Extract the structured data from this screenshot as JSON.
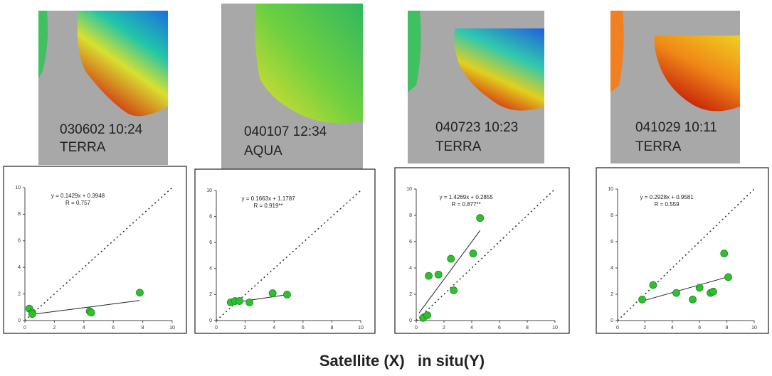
{
  "images": [
    {
      "date": "030602 10:24",
      "satellite": "TERRA"
    },
    {
      "date": "040107 12:34",
      "satellite": "AQUA"
    },
    {
      "date": "040723 10:23",
      "satellite": "TERRA"
    },
    {
      "date": "041029 10:11",
      "satellite": "TERRA"
    }
  ],
  "caption": "Satellite (X)   in situ(Y)",
  "chart_data": [
    {
      "type": "scatter",
      "annotations": [
        "y = 0.1429x + 0.3948",
        "R = 0.757"
      ],
      "x": [
        0.3,
        0.5,
        0.5,
        4.4,
        4.5,
        7.8
      ],
      "values": [
        0.9,
        0.6,
        0.5,
        0.7,
        0.6,
        2.1
      ],
      "color": "#2fbf2f",
      "fit_line": {
        "x": [
          0.3,
          7.8
        ],
        "y": [
          0.44,
          1.51
        ]
      },
      "identity_line": true,
      "xlim": [
        0,
        10
      ],
      "ylim": [
        0,
        10
      ],
      "xticks": [
        0,
        2,
        4,
        6,
        8,
        10
      ],
      "yticks": [
        0,
        2,
        4,
        6,
        8,
        10
      ]
    },
    {
      "type": "scatter",
      "annotations": [
        "y = 0.1663x + 1.1787",
        "R = 0.919**"
      ],
      "x": [
        1.0,
        1.3,
        1.6,
        2.3,
        3.9,
        4.9
      ],
      "values": [
        1.4,
        1.5,
        1.5,
        1.4,
        2.1,
        2.0
      ],
      "color": "#2fbf2f",
      "fit_line": {
        "x": [
          0.9,
          4.9
        ],
        "y": [
          1.33,
          1.99
        ]
      },
      "identity_line": true,
      "xlim": [
        0,
        10
      ],
      "ylim": [
        0,
        10
      ],
      "xticks": [
        0,
        2,
        4,
        6,
        8,
        10
      ],
      "yticks": [
        0,
        2,
        4,
        6,
        8,
        10
      ]
    },
    {
      "type": "scatter",
      "annotations": [
        "y = 1.4269x + 0.2855",
        "R = 0.877**"
      ],
      "x": [
        0.5,
        0.8,
        0.9,
        1.6,
        2.5,
        2.7,
        4.1,
        4.6
      ],
      "values": [
        0.2,
        0.4,
        3.4,
        3.5,
        4.7,
        2.3,
        5.1,
        7.8
      ],
      "color": "#2fbf2f",
      "fit_line": {
        "x": [
          0.2,
          4.6
        ],
        "y": [
          0.57,
          6.85
        ]
      },
      "identity_line": true,
      "xlim": [
        0,
        10
      ],
      "ylim": [
        0,
        10
      ],
      "xticks": [
        0,
        2,
        4,
        6,
        8,
        10
      ],
      "yticks": [
        0,
        2,
        4,
        6,
        8,
        10
      ]
    },
    {
      "type": "scatter",
      "annotations": [
        "y = 0.2928x + 0.9581",
        "R = 0.559"
      ],
      "x": [
        1.8,
        2.6,
        4.3,
        5.5,
        6.0,
        6.8,
        7.0,
        7.8,
        8.1
      ],
      "values": [
        1.6,
        2.7,
        2.1,
        1.6,
        2.5,
        2.1,
        2.2,
        5.1,
        3.3
      ],
      "color": "#2fbf2f",
      "fit_line": {
        "x": [
          1.9,
          8.1
        ],
        "y": [
          1.51,
          3.33
        ]
      },
      "identity_line": true,
      "xlim": [
        0,
        10
      ],
      "ylim": [
        0,
        10
      ],
      "xticks": [
        0,
        2,
        4,
        6,
        8,
        10
      ],
      "yticks": [
        0,
        2,
        4,
        6,
        8,
        10
      ]
    }
  ]
}
